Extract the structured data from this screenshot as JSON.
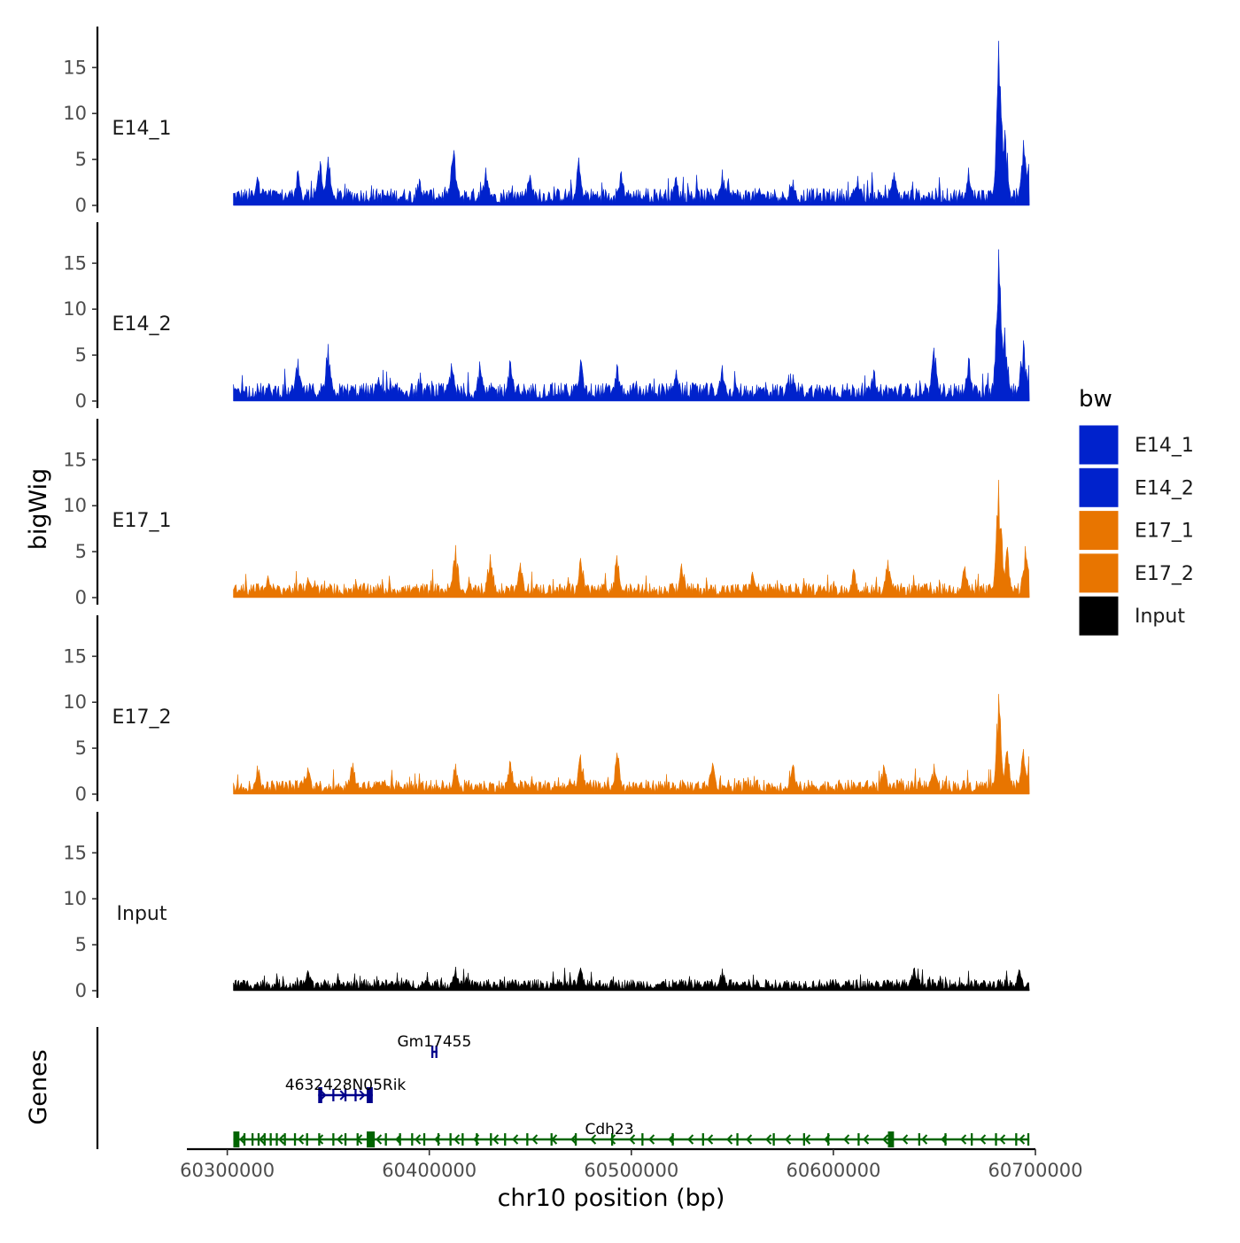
{
  "chart_data": {
    "type": "area",
    "region": "chr10",
    "xlabel": "chr10 position (bp)",
    "ylabel": "bigWig",
    "genes_label": "Genes",
    "xlim": [
      60280000,
      60700000
    ],
    "data_range": [
      60303000,
      60697000
    ],
    "xticks": [
      60300000,
      60400000,
      60500000,
      60600000,
      60700000
    ],
    "xtick_labels": [
      "60300000",
      "60400000",
      "60500000",
      "60600000",
      "60700000"
    ],
    "ylim": [
      0,
      18.5
    ],
    "yticks": [
      0,
      5,
      10,
      15
    ],
    "ytick_labels": [
      "0",
      "5",
      "10",
      "15"
    ],
    "tracks": [
      {
        "name": "E14_1",
        "color": "#0022CC",
        "baseline": 1.8,
        "peaks": [
          {
            "x": 60315000,
            "y": 3.1
          },
          {
            "x": 60335000,
            "y": 3.8
          },
          {
            "x": 60346000,
            "y": 4.8
          },
          {
            "x": 60350000,
            "y": 5.3
          },
          {
            "x": 60395000,
            "y": 2.9
          },
          {
            "x": 60412000,
            "y": 6.0
          },
          {
            "x": 60428000,
            "y": 4.1
          },
          {
            "x": 60450000,
            "y": 3.3
          },
          {
            "x": 60474000,
            "y": 5.2
          },
          {
            "x": 60495000,
            "y": 3.7
          },
          {
            "x": 60522000,
            "y": 3.1
          },
          {
            "x": 60545000,
            "y": 3.9
          },
          {
            "x": 60580000,
            "y": 2.8
          },
          {
            "x": 60612000,
            "y": 3.2
          },
          {
            "x": 60630000,
            "y": 3.6
          },
          {
            "x": 60667000,
            "y": 4.1
          },
          {
            "x": 60682000,
            "y": 17.9
          },
          {
            "x": 60685000,
            "y": 8.2
          },
          {
            "x": 60694000,
            "y": 7.1
          },
          {
            "x": 60697000,
            "y": 4.5
          }
        ]
      },
      {
        "name": "E14_2",
        "color": "#0022CC",
        "baseline": 1.9,
        "peaks": [
          {
            "x": 60304000,
            "y": 1.4
          },
          {
            "x": 60335000,
            "y": 4.6
          },
          {
            "x": 60350000,
            "y": 6.2
          },
          {
            "x": 60375000,
            "y": 2.6
          },
          {
            "x": 60411000,
            "y": 4.1
          },
          {
            "x": 60425000,
            "y": 4.3
          },
          {
            "x": 60440000,
            "y": 4.4
          },
          {
            "x": 60475000,
            "y": 4.5
          },
          {
            "x": 60493000,
            "y": 4.0
          },
          {
            "x": 60522000,
            "y": 3.4
          },
          {
            "x": 60545000,
            "y": 3.9
          },
          {
            "x": 60580000,
            "y": 2.9
          },
          {
            "x": 60620000,
            "y": 3.4
          },
          {
            "x": 60650000,
            "y": 5.8
          },
          {
            "x": 60667000,
            "y": 4.7
          },
          {
            "x": 60682000,
            "y": 16.5
          },
          {
            "x": 60685000,
            "y": 8.0
          },
          {
            "x": 60694000,
            "y": 6.6
          },
          {
            "x": 60697000,
            "y": 3.9
          }
        ]
      },
      {
        "name": "E17_1",
        "color": "#E87500",
        "baseline": 1.5,
        "peaks": [
          {
            "x": 60320000,
            "y": 2.4
          },
          {
            "x": 60340000,
            "y": 2.2
          },
          {
            "x": 60413000,
            "y": 5.7
          },
          {
            "x": 60430000,
            "y": 4.7
          },
          {
            "x": 60445000,
            "y": 3.8
          },
          {
            "x": 60475000,
            "y": 4.3
          },
          {
            "x": 60493000,
            "y": 4.6
          },
          {
            "x": 60525000,
            "y": 3.7
          },
          {
            "x": 60560000,
            "y": 2.8
          },
          {
            "x": 60610000,
            "y": 3.1
          },
          {
            "x": 60627000,
            "y": 4.1
          },
          {
            "x": 60665000,
            "y": 3.4
          },
          {
            "x": 60682000,
            "y": 12.8
          },
          {
            "x": 60686000,
            "y": 5.5
          },
          {
            "x": 60695000,
            "y": 5.6
          },
          {
            "x": 60697000,
            "y": 3.0
          }
        ]
      },
      {
        "name": "E17_2",
        "color": "#E87500",
        "baseline": 1.5,
        "peaks": [
          {
            "x": 60315000,
            "y": 3.1
          },
          {
            "x": 60340000,
            "y": 2.9
          },
          {
            "x": 60362000,
            "y": 3.4
          },
          {
            "x": 60413000,
            "y": 3.3
          },
          {
            "x": 60440000,
            "y": 3.6
          },
          {
            "x": 60475000,
            "y": 4.3
          },
          {
            "x": 60493000,
            "y": 4.5
          },
          {
            "x": 60540000,
            "y": 3.4
          },
          {
            "x": 60580000,
            "y": 3.2
          },
          {
            "x": 60625000,
            "y": 3.2
          },
          {
            "x": 60650000,
            "y": 3.3
          },
          {
            "x": 60682000,
            "y": 10.9
          },
          {
            "x": 60686000,
            "y": 4.7
          },
          {
            "x": 60694000,
            "y": 4.9
          },
          {
            "x": 60697000,
            "y": 4.1
          }
        ]
      },
      {
        "name": "Input",
        "color": "#000000",
        "baseline": 1.2,
        "peaks": [
          {
            "x": 60340000,
            "y": 2.2
          },
          {
            "x": 60413000,
            "y": 2.6
          },
          {
            "x": 60475000,
            "y": 2.5
          },
          {
            "x": 60545000,
            "y": 2.4
          },
          {
            "x": 60640000,
            "y": 2.5
          },
          {
            "x": 60692000,
            "y": 2.3
          }
        ]
      }
    ],
    "legend": {
      "title": "bw",
      "position": "right",
      "items": [
        {
          "label": "E14_1",
          "color": "#0022CC"
        },
        {
          "label": "E14_2",
          "color": "#0022CC"
        },
        {
          "label": "E17_1",
          "color": "#E87500"
        },
        {
          "label": "E17_2",
          "color": "#E87500"
        },
        {
          "label": "Input",
          "color": "#000000"
        }
      ]
    },
    "genes": [
      {
        "name": "Gm17455",
        "start": 60401000,
        "end": 60404000,
        "strand": "+",
        "color": "#00008B",
        "row": 0,
        "exons": [
          [
            60401000,
            60402000
          ],
          [
            60403000,
            60404000
          ]
        ]
      },
      {
        "name": "4632428N05Rik",
        "start": 60345000,
        "end": 60372000,
        "strand": "+",
        "color": "#00008B",
        "row": 1,
        "exons": [
          [
            60345000,
            60347000
          ],
          [
            60352000,
            60353000
          ],
          [
            60358000,
            60359000
          ],
          [
            60363000,
            60364000
          ],
          [
            60369000,
            60372000
          ]
        ]
      },
      {
        "name": "Cdh23",
        "start": 60303000,
        "end": 60697000,
        "strand": "-",
        "color": "#006400",
        "row": 2,
        "exons": [
          [
            60303000,
            60306000
          ],
          [
            60308000,
            60309000
          ],
          [
            60312000,
            60313000
          ],
          [
            60315000,
            60316000
          ],
          [
            60318000,
            60319000
          ],
          [
            60321000,
            60322000
          ],
          [
            60324000,
            60325000
          ],
          [
            60328000,
            60329000
          ],
          [
            60333000,
            60334000
          ],
          [
            60339000,
            60340000
          ],
          [
            60345000,
            60346000
          ],
          [
            60352000,
            60353000
          ],
          [
            60358000,
            60359000
          ],
          [
            60364000,
            60365000
          ],
          [
            60369000,
            60373000
          ],
          [
            60378000,
            60379000
          ],
          [
            60385000,
            60386000
          ],
          [
            60391000,
            60392000
          ],
          [
            60397000,
            60398000
          ],
          [
            60404000,
            60405000
          ],
          [
            60410000,
            60411000
          ],
          [
            60416000,
            60417000
          ],
          [
            60423000,
            60424000
          ],
          [
            60430000,
            60431000
          ],
          [
            60437000,
            60438000
          ],
          [
            60448000,
            60449000
          ],
          [
            60460000,
            60461000
          ],
          [
            60472000,
            60473000
          ],
          [
            60490000,
            60491000
          ],
          [
            60505000,
            60506000
          ],
          [
            60520000,
            60521000
          ],
          [
            60535000,
            60536000
          ],
          [
            60552000,
            60553000
          ],
          [
            60570000,
            60571000
          ],
          [
            60585000,
            60586000
          ],
          [
            60597000,
            60598000
          ],
          [
            60612000,
            60613000
          ],
          [
            60627000,
            60630000
          ],
          [
            60642000,
            60643000
          ],
          [
            60655000,
            60656000
          ],
          [
            60668000,
            60669000
          ],
          [
            60680000,
            60681000
          ],
          [
            60690000,
            60691000
          ],
          [
            60696000,
            60697000
          ]
        ]
      }
    ]
  }
}
